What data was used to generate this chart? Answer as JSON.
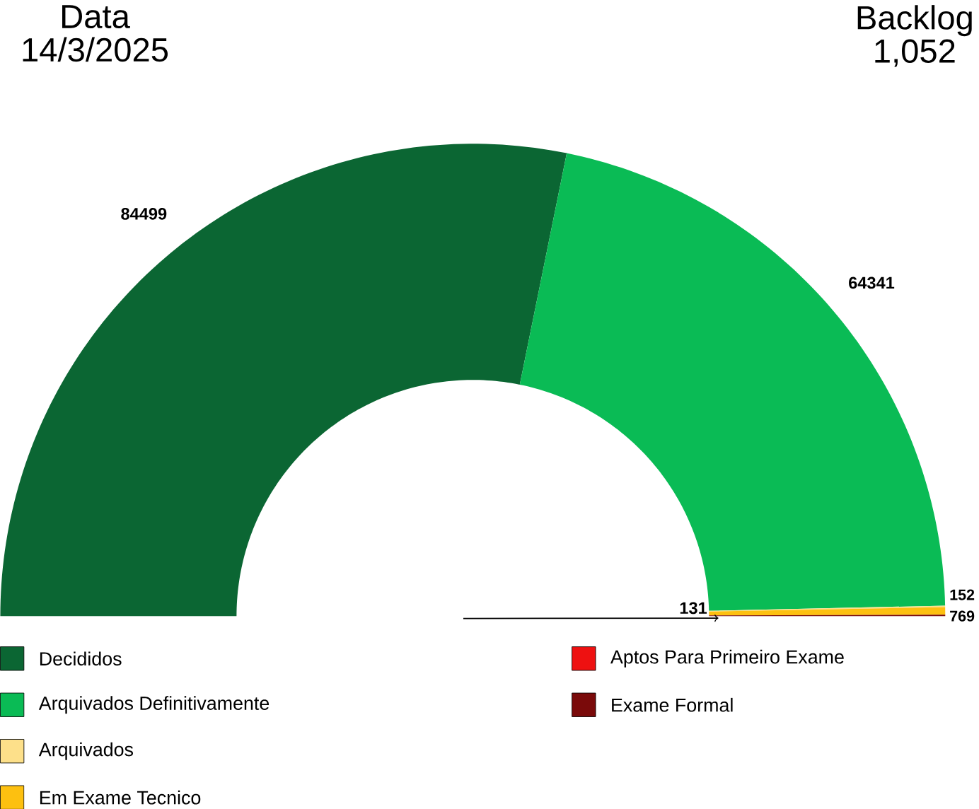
{
  "chart_data": {
    "type": "donut",
    "title": "Data",
    "subtitle": "14/3/2025",
    "annotations": [
      "Backlog",
      "1,052"
    ],
    "categories": [
      "Decididos",
      "Arquivados Definitivamente",
      "Arquivados",
      "Em Exame Tecnico",
      "Aptos Para Primeiro Exame",
      "Exame Formal"
    ],
    "values": [
      84499,
      64341,
      152,
      769,
      null,
      131
    ],
    "colors": [
      "#0b6633",
      "#0abb55",
      "#fde08a",
      "#fdc010",
      "#ee1111",
      "#7a0a0a"
    ],
    "data_labels": true,
    "legend": "bottom",
    "needle": "Exame Formal"
  }
}
